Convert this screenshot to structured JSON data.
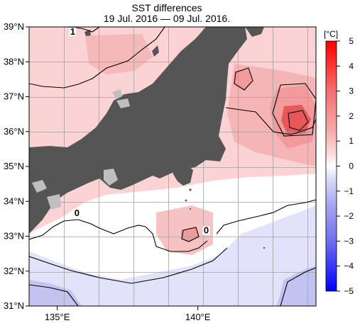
{
  "chart_data": {
    "type": "heatmap",
    "title": "SST differences",
    "subtitle": "19 Jul. 2016 — 09 Jul. 2016.",
    "x_ticks": [
      "135°E",
      "140°E"
    ],
    "x_tick_values": [
      135,
      140
    ],
    "y_ticks": [
      "39°N",
      "38°N",
      "37°N",
      "36°N",
      "35°N",
      "34°N",
      "33°N",
      "32°N",
      "31°N"
    ],
    "y_tick_values": [
      39,
      38,
      37,
      36,
      35,
      34,
      33,
      32,
      31
    ],
    "xlim": [
      134,
      144.2
    ],
    "ylim": [
      31,
      39
    ],
    "grid": true,
    "colorbar": {
      "unit": "[°C]",
      "ticks": [
        5,
        4,
        3,
        2,
        1,
        0,
        -1,
        -2,
        -3,
        -4,
        -5
      ],
      "range": [
        -5,
        5
      ]
    },
    "contour_labels": [
      {
        "text": "1",
        "lon": 135.55,
        "lat": 38.8
      },
      {
        "text": "0",
        "lon": 135.7,
        "lat": 33.6
      },
      {
        "text": "0",
        "lon": 140.3,
        "lat": 33.1
      }
    ],
    "colors": {
      "land": "#555555",
      "lake": "#bfbfbf",
      "warm_strong": "#e8585a",
      "warm_mid": "#f29a9c",
      "warm_light": "#fbd3d4",
      "neutral": "#ffffff",
      "cool_light": "#e2e2fb",
      "cool_mid": "#c3c3f2"
    }
  }
}
